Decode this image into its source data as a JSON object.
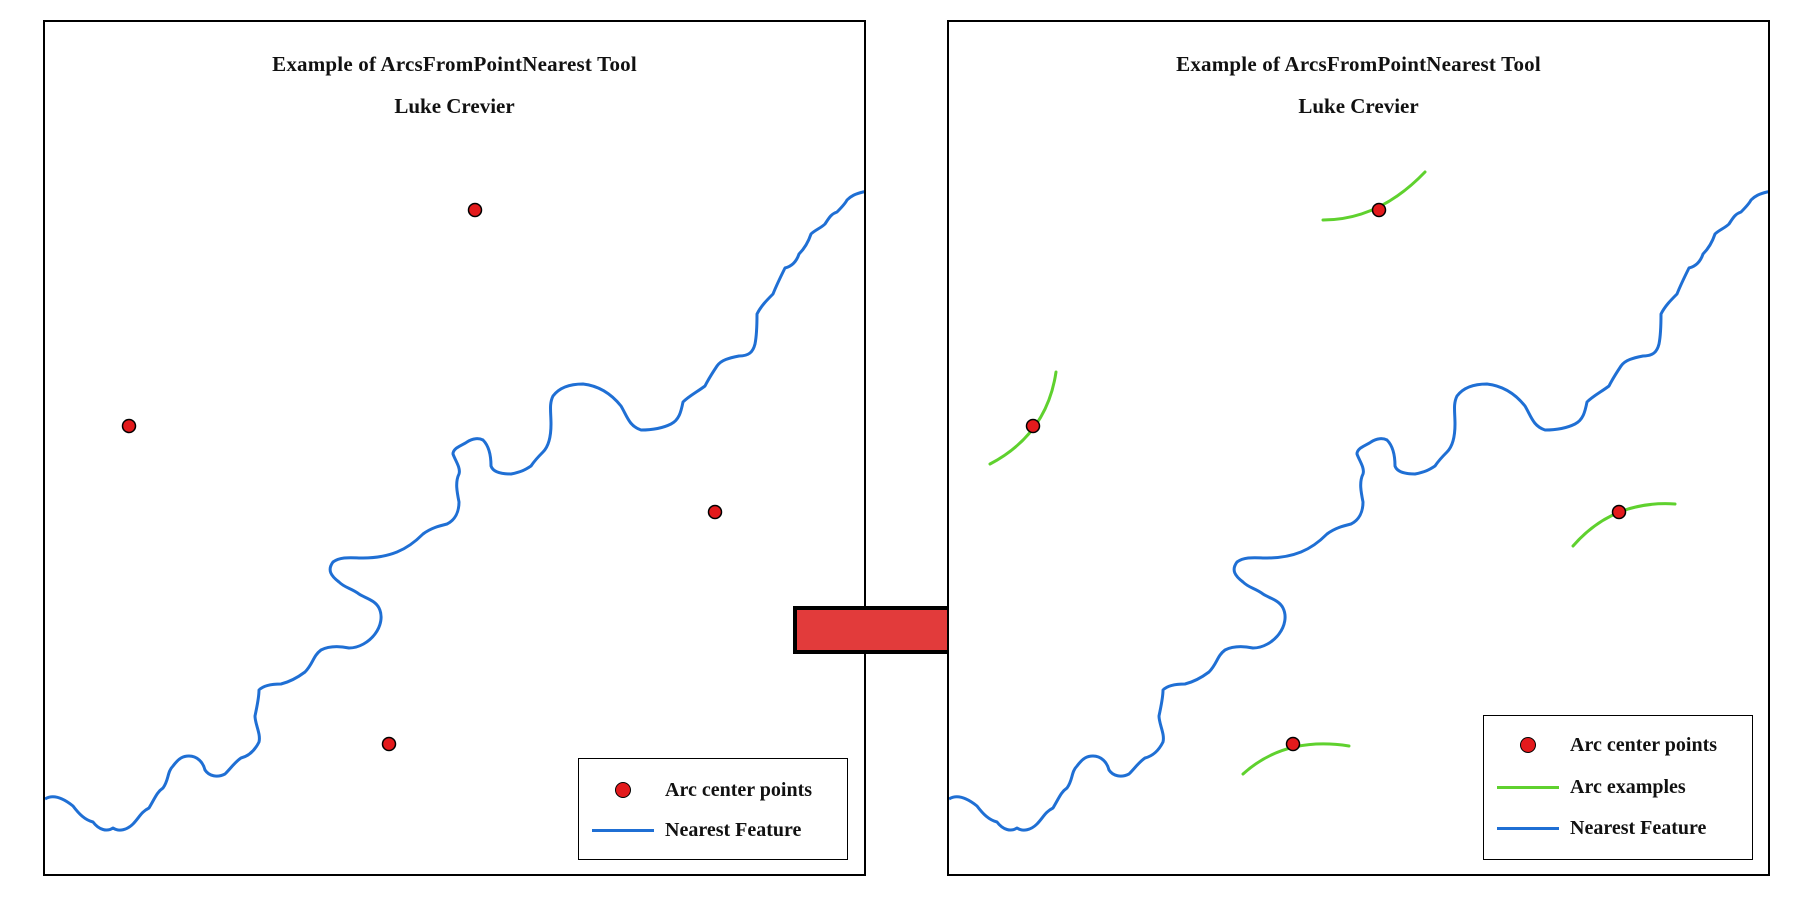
{
  "colors": {
    "point_fill": "#e31a1c",
    "arc": "#5fd12e",
    "river": "#1f6fd4",
    "arrow": "#e23b3b"
  },
  "left_map": {
    "title": "Example of ArcsFromPointNearest Tool",
    "subtitle": "Luke Crevier",
    "legend": {
      "point_label": "Arc center points",
      "river_label": "Nearest Feature"
    }
  },
  "right_map": {
    "title": "Example of ArcsFromPointNearest Tool",
    "subtitle": "Luke Crevier",
    "legend": {
      "point_label": "Arc center points",
      "arc_label": "Arc examples",
      "river_label": "Nearest Feature"
    }
  },
  "arrow_icon": "right-arrow-icon"
}
